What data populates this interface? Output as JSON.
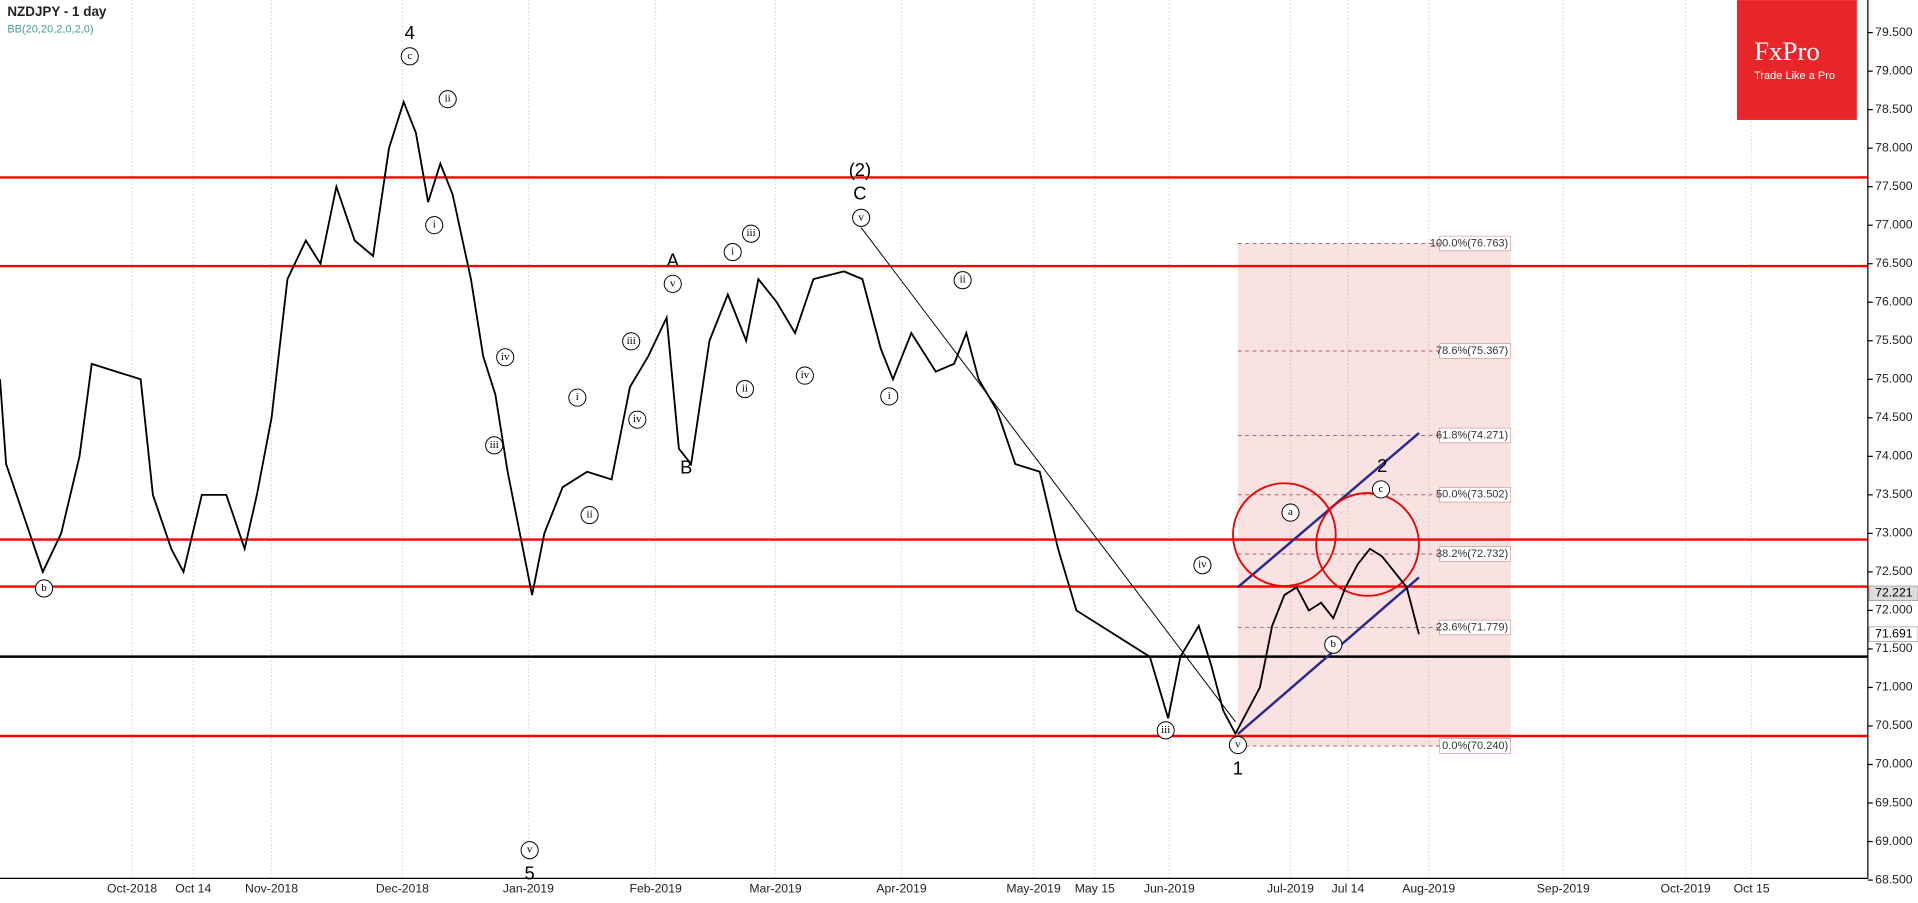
{
  "chart_data": {
    "type": "line",
    "title": "NZDJPY - 1 day",
    "subtitle": "BB(20,20,2,0,2,0)",
    "brand": {
      "name": "FxPro",
      "slogan": "Trade Like a Pro"
    },
    "x": [
      0,
      1,
      4,
      7,
      10,
      13,
      15,
      19,
      23,
      25,
      28,
      30,
      33,
      37,
      40,
      42,
      44.4,
      47,
      50,
      52.4,
      55,
      58,
      61,
      63.6,
      66,
      68,
      70,
      72,
      74,
      77,
      79,
      81,
      83,
      85,
      87,
      89,
      92,
      96,
      100,
      103,
      106,
      109,
      111,
      113,
      116,
      119,
      122,
      124,
      127,
      130,
      133,
      138,
      141,
      144,
      146,
      149,
      153,
      156,
      158,
      160,
      163,
      166,
      170,
      173,
      176,
      180,
      184,
      188,
      191,
      193,
      196,
      198,
      200,
      202,
      204,
      206,
      208,
      210,
      212,
      214,
      216,
      218,
      220,
      222,
      224,
      226,
      228,
      230,
      232
    ],
    "series": [
      {
        "name": "NZDJPY",
        "color": "#000000",
        "values": [
          75.0,
          73.9,
          73.2,
          72.5,
          73.0,
          74.0,
          75.2,
          75.1,
          75.0,
          73.5,
          72.8,
          72.5,
          73.5,
          73.5,
          72.8,
          73.5,
          74.5,
          76.3,
          76.8,
          76.5,
          77.5,
          76.8,
          76.6,
          78.0,
          78.6,
          78.2,
          77.3,
          77.8,
          77.4,
          76.3,
          75.3,
          74.8,
          73.8,
          73.0,
          72.2,
          73.0,
          73.6,
          73.8,
          73.7,
          74.9,
          75.3,
          75.8,
          74.1,
          73.9,
          75.5,
          76.1,
          75.5,
          76.3,
          76.0,
          75.6,
          76.3,
          76.4,
          76.3,
          75.4,
          75.0,
          75.6,
          75.1,
          75.2,
          75.6,
          75.0,
          74.6,
          73.9,
          73.8,
          72.8,
          72.0,
          71.8,
          71.6,
          71.4,
          70.6,
          71.4,
          71.8,
          71.3,
          70.7,
          70.4,
          70.7,
          71.0,
          71.8,
          72.2,
          72.3,
          72.0,
          72.1,
          71.9,
          72.3,
          72.6,
          72.8,
          72.7,
          72.5,
          72.3,
          71.691
        ]
      }
    ],
    "xlim": [
      0,
      305.4
    ],
    "xticks": [
      {
        "value": 21.6,
        "label": "Oct-2018"
      },
      {
        "value": 31.6,
        "label": "Oct 14"
      },
      {
        "value": 44.4,
        "label": "Nov-2018"
      },
      {
        "value": 65.8,
        "label": "Dec-2018"
      },
      {
        "value": 86.4,
        "label": "Jan-2019"
      },
      {
        "value": 107.2,
        "label": "Feb-2019"
      },
      {
        "value": 126.8,
        "label": "Mar-2019"
      },
      {
        "value": 147.4,
        "label": "Apr-2019"
      },
      {
        "value": 169,
        "label": "May-2019"
      },
      {
        "value": 179,
        "label": "May 15"
      },
      {
        "value": 191.2,
        "label": "Jun-2019"
      },
      {
        "value": 211,
        "label": "Jul-2019"
      },
      {
        "value": 220.4,
        "label": "Jul 14"
      },
      {
        "value": 233.6,
        "label": "Aug-2019"
      },
      {
        "value": 255.6,
        "label": "Sep-2019"
      },
      {
        "value": 275.6,
        "label": "Oct-2019"
      },
      {
        "value": 286.4,
        "label": "Oct 15"
      }
    ],
    "ylim": [
      68.3,
      79.7
    ],
    "yticks": [
      {
        "value": 68.5,
        "label": "68.500"
      },
      {
        "value": 69,
        "label": "69.000"
      },
      {
        "value": 69.5,
        "label": "69.500"
      },
      {
        "value": 70,
        "label": "70.000"
      },
      {
        "value": 70.5,
        "label": "70.500"
      },
      {
        "value": 71,
        "label": "71.000"
      },
      {
        "value": 71.5,
        "label": "71.500"
      },
      {
        "value": 72,
        "label": "72.000"
      },
      {
        "value": 72.5,
        "label": "72.500"
      },
      {
        "value": 73,
        "label": "73.000"
      },
      {
        "value": 73.5,
        "label": "73.500"
      },
      {
        "value": 74,
        "label": "74.000"
      },
      {
        "value": 74.5,
        "label": "74.500"
      },
      {
        "value": 75,
        "label": "75.000"
      },
      {
        "value": 75.5,
        "label": "75.500"
      },
      {
        "value": 76,
        "label": "76.000"
      },
      {
        "value": 76.5,
        "label": "76.500"
      },
      {
        "value": 77,
        "label": "77.000"
      },
      {
        "value": 77.5,
        "label": "77.500"
      },
      {
        "value": 78,
        "label": "78.000"
      },
      {
        "value": 78.5,
        "label": "78.500"
      },
      {
        "value": 79,
        "label": "79.000"
      },
      {
        "value": 79.5,
        "label": "79.500"
      }
    ],
    "levels": {
      "color": "#ff0000",
      "values": [
        77.62,
        76.47,
        72.92,
        72.31,
        70.37
      ]
    },
    "support": {
      "color": "#000000",
      "value": 71.4
    },
    "price_marks": [
      {
        "value": 72.221,
        "label": "72.221"
      },
      {
        "value": 71.691,
        "label": "71.691"
      }
    ],
    "fib": {
      "x": [
        202.4,
        247
      ],
      "levels": [
        {
          "value": 76.763,
          "label": "100.0%(76.763)"
        },
        {
          "value": 75.367,
          "label": "78.6%(75.367)"
        },
        {
          "value": 74.271,
          "label": "61.8%(74.271)"
        },
        {
          "value": 73.502,
          "label": "50.0%(73.502)"
        },
        {
          "value": 72.732,
          "label": "38.2%(72.732)"
        },
        {
          "value": 71.779,
          "label": "23.6%(71.779)"
        },
        {
          "value": 70.24,
          "label": "0.0%(70.240)"
        }
      ]
    },
    "annotations": [
      {
        "text": "4",
        "circled": false
      },
      {
        "text": "c",
        "circled": true
      },
      {
        "text": "ii",
        "circled": true
      },
      {
        "text": "i",
        "circled": true
      },
      {
        "text": "(2)",
        "circled": false
      },
      {
        "text": "C",
        "circled": false
      },
      {
        "text": "v",
        "circled": true
      },
      {
        "text": "A",
        "circled": false
      },
      {
        "text": "v",
        "circled": true
      },
      {
        "text": "iii",
        "circled": true
      },
      {
        "text": "i",
        "circled": true
      },
      {
        "text": "ii",
        "circled": true
      },
      {
        "text": "iv",
        "circled": true
      },
      {
        "text": "ii",
        "circled": true
      },
      {
        "text": "i",
        "circled": true
      },
      {
        "text": "iii",
        "circled": true
      },
      {
        "text": "iv",
        "circled": true
      },
      {
        "text": "i",
        "circled": true
      },
      {
        "text": "ii",
        "circled": true
      },
      {
        "text": "B",
        "circled": false
      },
      {
        "text": "iv",
        "circled": true
      },
      {
        "text": "iii",
        "circled": true
      },
      {
        "text": "b",
        "circled": true
      },
      {
        "text": "v",
        "circled": true
      },
      {
        "text": "5",
        "circled": false
      },
      {
        "text": "iii",
        "circled": true
      },
      {
        "text": "v",
        "circled": true
      },
      {
        "text": "1",
        "circled": false
      },
      {
        "text": "iv",
        "circled": true
      },
      {
        "text": "a",
        "circled": true
      },
      {
        "text": "b",
        "circled": true
      },
      {
        "text": "c",
        "circled": true
      },
      {
        "text": "2",
        "circled": false
      }
    ],
    "grid": true
  }
}
